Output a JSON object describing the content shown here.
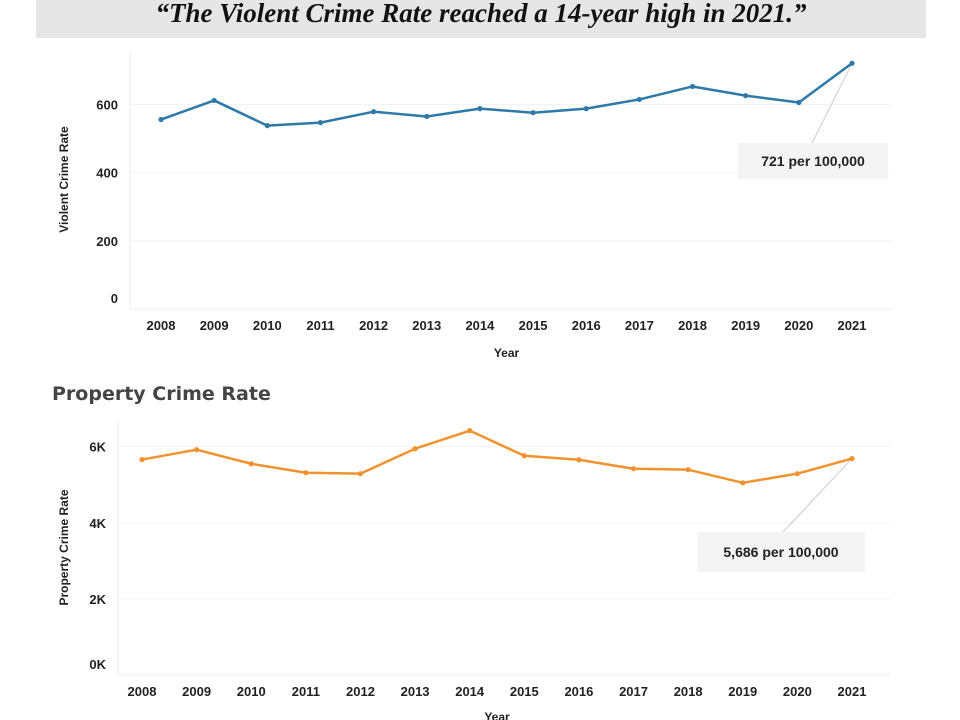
{
  "header": {
    "quote": "“The Violent Crime Rate reached a 14-year high in 2021.”"
  },
  "chart_data": [
    {
      "type": "line",
      "title": "",
      "xlabel": "Year",
      "ylabel": "Violent Crime Rate",
      "categories": [
        "2008",
        "2009",
        "2010",
        "2011",
        "2012",
        "2013",
        "2014",
        "2015",
        "2016",
        "2017",
        "2018",
        "2019",
        "2020",
        "2021"
      ],
      "series": [
        {
          "values": [
            556,
            612,
            538,
            547,
            579,
            565,
            588,
            576,
            588,
            615,
            653,
            626,
            606,
            721
          ],
          "color": "#2e79a8"
        }
      ],
      "yticks": [
        {
          "v": 0,
          "label": "0"
        },
        {
          "v": 200,
          "label": "200"
        },
        {
          "v": 400,
          "label": "400"
        },
        {
          "v": 600,
          "label": "600"
        }
      ],
      "ylim": [
        0,
        760
      ],
      "grid": true,
      "annotation": {
        "category": "2021",
        "text": "721 per 100,000"
      }
    },
    {
      "type": "line",
      "title": "Property Crime Rate",
      "xlabel": "Year",
      "ylabel": "Property Crime Rate",
      "categories": [
        "2008",
        "2009",
        "2010",
        "2011",
        "2012",
        "2013",
        "2014",
        "2015",
        "2016",
        "2017",
        "2018",
        "2019",
        "2020",
        "2021"
      ],
      "series": [
        {
          "values": [
            5660,
            5920,
            5550,
            5315,
            5290,
            5945,
            6420,
            5760,
            5655,
            5420,
            5395,
            5050,
            5290,
            5686
          ],
          "color": "#f0922e"
        }
      ],
      "yticks": [
        {
          "v": 0,
          "label": "0K"
        },
        {
          "v": 2000,
          "label": "2K"
        },
        {
          "v": 4000,
          "label": "4K"
        },
        {
          "v": 6000,
          "label": "6K"
        }
      ],
      "ylim": [
        0,
        6700
      ],
      "grid": true,
      "annotation": {
        "category": "2021",
        "text": "5,686 per 100,000"
      }
    }
  ]
}
